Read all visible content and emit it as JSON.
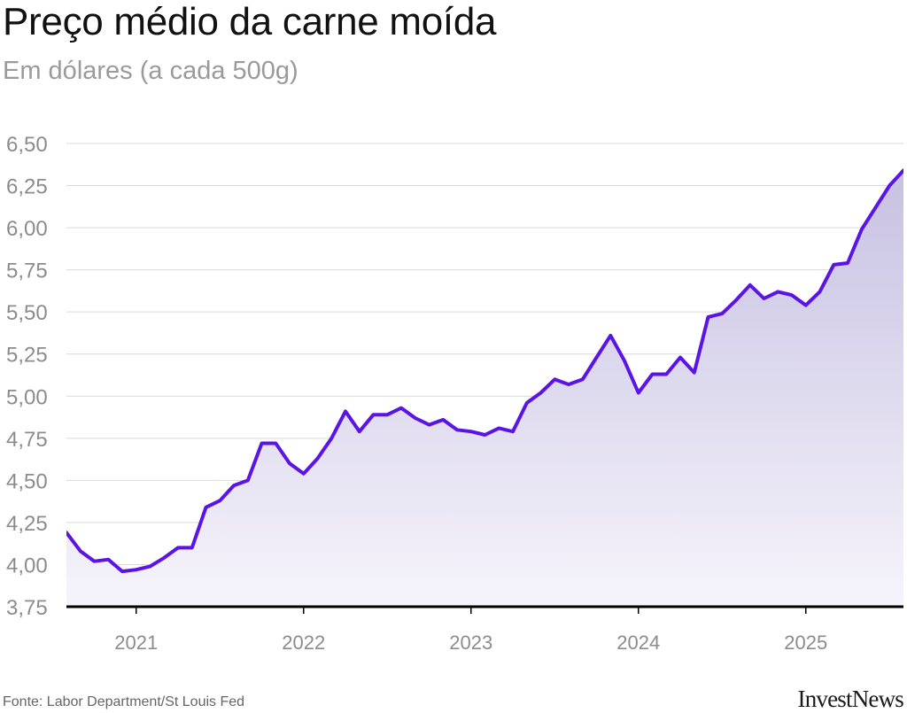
{
  "title": "Preço médio da carne moída",
  "subtitle": "Em dólares (a cada 500g)",
  "source": "Fonte: Labor Department/St Louis Fed",
  "logo_text": "InvestNews",
  "colors": {
    "line": "#5b14e6",
    "area_top": "#c7c1e2",
    "area_bottom": "#f6f4fb",
    "grid": "#d9d9d9",
    "axis": "#000000",
    "tick_label": "#8c8c8c"
  },
  "chart_data": {
    "type": "area",
    "title": "Preço médio da carne moída",
    "subtitle": "Em dólares (a cada 500g)",
    "xlabel": "",
    "ylabel": "",
    "ylim": [
      3.75,
      6.5
    ],
    "xlim": [
      "2020-08",
      "2025-08"
    ],
    "grid": true,
    "y_ticks": [
      3.75,
      4.0,
      4.25,
      4.5,
      4.75,
      5.0,
      5.25,
      5.5,
      5.75,
      6.0,
      6.25,
      6.5
    ],
    "y_tick_labels": [
      "3,75",
      "4,00",
      "4,25",
      "4,50",
      "4,75",
      "5,00",
      "5,25",
      "5,50",
      "5,75",
      "6,00",
      "6,25",
      "6,50"
    ],
    "x_ticks": [
      "2021-01",
      "2022-01",
      "2023-01",
      "2024-01",
      "2025-01"
    ],
    "x_tick_labels": [
      "2021",
      "2022",
      "2023",
      "2024",
      "2025"
    ],
    "series": [
      {
        "x": [
          "2020-08",
          "2020-09",
          "2020-10",
          "2020-11",
          "2020-12",
          "2021-01",
          "2021-02",
          "2021-03",
          "2021-04",
          "2021-05",
          "2021-06",
          "2021-07",
          "2021-08",
          "2021-09",
          "2021-10",
          "2021-11",
          "2021-12",
          "2022-01",
          "2022-02",
          "2022-03",
          "2022-04",
          "2022-05",
          "2022-06",
          "2022-07",
          "2022-08",
          "2022-09",
          "2022-10",
          "2022-11",
          "2022-12",
          "2023-01",
          "2023-02",
          "2023-03",
          "2023-04",
          "2023-05",
          "2023-06",
          "2023-07",
          "2023-08",
          "2023-09",
          "2023-10",
          "2023-11",
          "2023-12",
          "2024-01",
          "2024-02",
          "2024-03",
          "2024-04",
          "2024-05",
          "2024-06",
          "2024-07",
          "2024-08",
          "2024-09",
          "2024-10",
          "2024-11",
          "2024-12",
          "2025-01",
          "2025-02",
          "2025-03",
          "2025-04",
          "2025-05",
          "2025-06",
          "2025-07",
          "2025-08"
        ],
        "values": [
          4.19,
          4.08,
          4.02,
          4.03,
          3.96,
          3.97,
          3.99,
          4.04,
          4.1,
          4.1,
          4.34,
          4.38,
          4.47,
          4.5,
          4.72,
          4.72,
          4.6,
          4.54,
          4.63,
          4.75,
          4.91,
          4.79,
          4.89,
          4.89,
          4.93,
          4.87,
          4.83,
          4.86,
          4.8,
          4.79,
          4.77,
          4.81,
          4.79,
          4.96,
          5.02,
          5.1,
          5.07,
          5.1,
          5.23,
          5.36,
          5.21,
          5.02,
          5.13,
          5.13,
          5.23,
          5.14,
          5.47,
          5.49,
          5.57,
          5.66,
          5.58,
          5.62,
          5.6,
          5.54,
          5.62,
          5.78,
          5.79,
          5.99,
          6.12,
          6.25,
          6.34
        ]
      }
    ]
  }
}
